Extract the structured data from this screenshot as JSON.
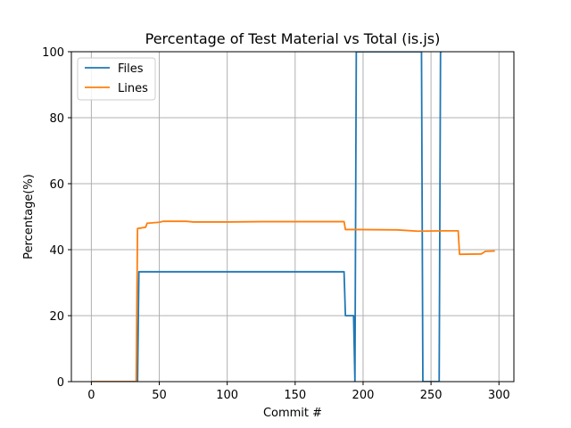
{
  "chart_data": {
    "type": "line",
    "title": "Percentage of Test Material vs Total (is.js)",
    "xlabel": "Commit #",
    "ylabel": "Percentage(%)",
    "xlim": [
      -14.7,
      311
    ],
    "ylim": [
      0,
      100
    ],
    "xticks": [
      0,
      50,
      100,
      150,
      200,
      250,
      300
    ],
    "yticks": [
      0,
      20,
      40,
      60,
      80,
      100
    ],
    "grid": true,
    "legend": "top-left",
    "series": [
      {
        "name": "Files",
        "color": "#1f77b4",
        "points": [
          [
            0,
            0
          ],
          [
            34,
            0
          ],
          [
            35,
            33.3
          ],
          [
            186,
            33.3
          ],
          [
            187,
            20
          ],
          [
            193,
            20
          ],
          [
            194,
            0
          ],
          [
            195,
            100
          ],
          [
            196,
            100
          ],
          [
            243,
            100
          ],
          [
            244,
            0
          ],
          [
            256,
            0
          ],
          [
            257,
            100
          ],
          [
            258,
            100
          ]
        ]
      },
      {
        "name": "Lines",
        "color": "#ff7f0e",
        "points": [
          [
            0,
            0
          ],
          [
            33,
            0
          ],
          [
            34,
            46.4
          ],
          [
            40,
            46.8
          ],
          [
            41,
            48
          ],
          [
            50,
            48.3
          ],
          [
            53,
            48.6
          ],
          [
            70,
            48.6
          ],
          [
            75,
            48.4
          ],
          [
            100,
            48.4
          ],
          [
            125,
            48.5
          ],
          [
            186,
            48.5
          ],
          [
            187,
            46.1
          ],
          [
            195,
            46.1
          ],
          [
            225,
            46
          ],
          [
            240,
            45.6
          ],
          [
            260,
            45.7
          ],
          [
            270,
            45.7
          ],
          [
            271,
            38.6
          ],
          [
            287,
            38.7
          ],
          [
            290,
            39.5
          ],
          [
            297,
            39.6
          ]
        ]
      }
    ]
  }
}
